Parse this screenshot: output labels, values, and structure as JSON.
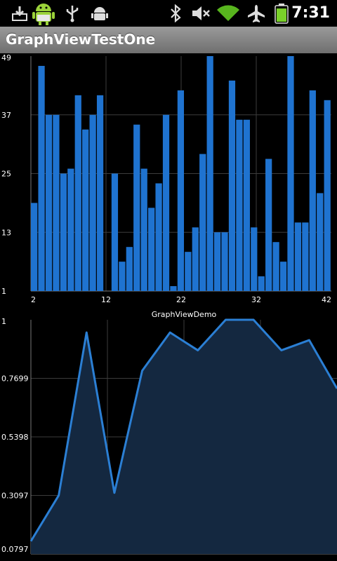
{
  "app": {
    "title": "GraphViewTestOne"
  },
  "status_bar": {
    "time": "7:31",
    "icons": [
      "download-icon",
      "android-robot-icon",
      "usb-icon",
      "debug-icon",
      "bluetooth-icon",
      "mute-icon",
      "wifi-icon",
      "airplane-icon",
      "battery-icon"
    ],
    "battery_level": 0.9
  },
  "colors": {
    "bar": "#1f73d0",
    "line": "#2b7fd4",
    "area_fill": "#142840",
    "grid": "#3c3c3c",
    "background": "#000000",
    "label": "#ffffff"
  },
  "chart_data": [
    {
      "type": "bar",
      "title": "",
      "x": [
        2,
        3,
        4,
        5,
        6,
        7,
        8,
        9,
        10,
        11,
        12,
        13,
        14,
        15,
        16,
        17,
        18,
        19,
        20,
        21,
        22,
        23,
        24,
        25,
        26,
        27,
        28,
        29,
        30,
        31,
        32,
        33,
        34,
        35,
        36,
        37,
        38,
        39,
        40,
        41,
        42
      ],
      "values": [
        19,
        47,
        37,
        37,
        25,
        26,
        41,
        34,
        37,
        41,
        0,
        25,
        7,
        10,
        35,
        26,
        18,
        23,
        37,
        2,
        42,
        9,
        14,
        29,
        50,
        13,
        13,
        44,
        36,
        36,
        14,
        4,
        28,
        11,
        7,
        49,
        15,
        15,
        42,
        21,
        40
      ],
      "y_tick_labels": [
        "1",
        "13",
        "25",
        "37",
        "49"
      ],
      "x_tick_labels": [
        "2",
        "12",
        "22",
        "32",
        "42"
      ],
      "ylim": [
        1,
        49
      ],
      "xlim": [
        2,
        42
      ],
      "grid": true
    },
    {
      "type": "area",
      "title": "GraphViewDemo",
      "x": [
        1,
        2,
        3,
        4,
        5,
        6,
        7,
        8,
        9,
        10,
        11,
        12
      ],
      "values": [
        0.13,
        0.31,
        0.95,
        0.32,
        0.8,
        0.95,
        0.88,
        1.0,
        1.0,
        0.88,
        0.92,
        0.73
      ],
      "y_tick_labels": [
        "0.0797",
        "0.3097",
        "0.5398",
        "0.7699",
        "1"
      ],
      "ylim": [
        0.0797,
        1
      ],
      "grid": true
    }
  ]
}
